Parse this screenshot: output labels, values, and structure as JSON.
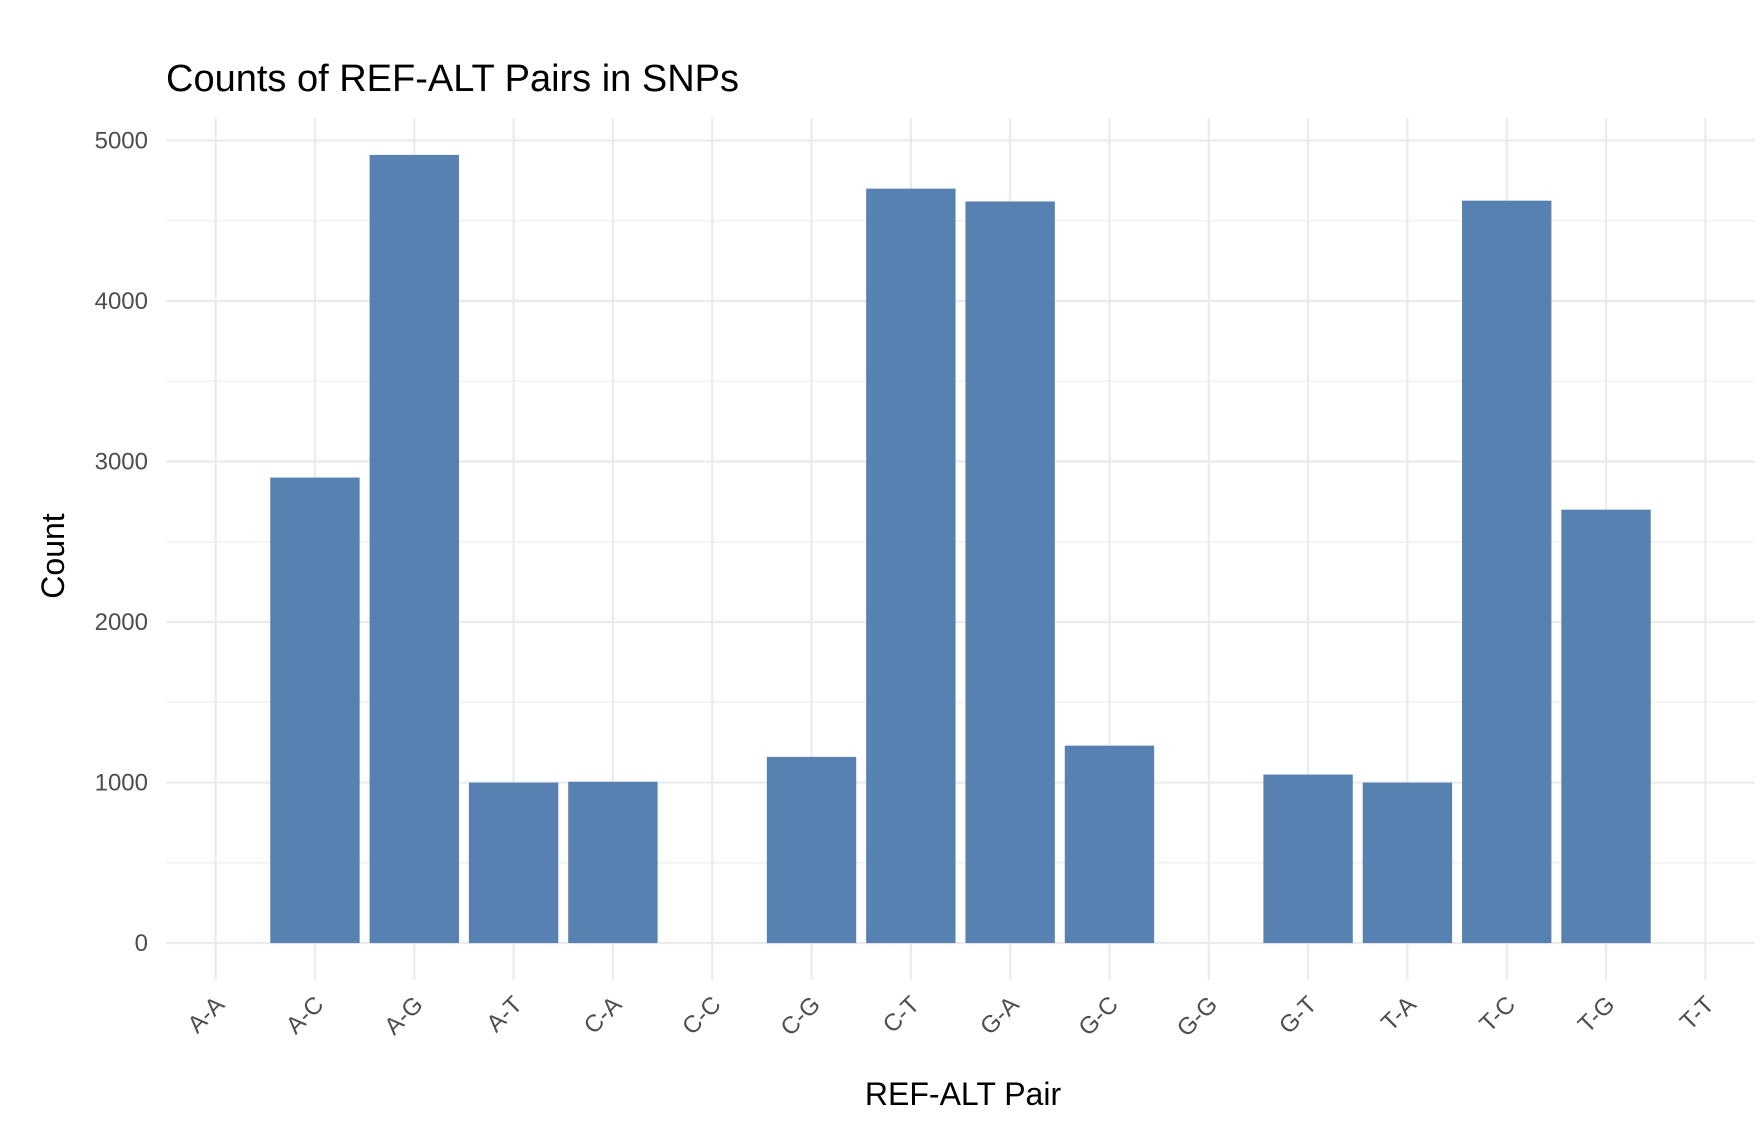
{
  "chart_data": {
    "type": "bar",
    "title": "Counts of REF-ALT Pairs in SNPs",
    "xlabel": "REF-ALT Pair",
    "ylabel": "Count",
    "categories": [
      "A-A",
      "A-C",
      "A-G",
      "A-T",
      "C-A",
      "C-C",
      "C-G",
      "C-T",
      "G-A",
      "G-C",
      "G-G",
      "G-T",
      "T-A",
      "T-C",
      "T-G",
      "T-T"
    ],
    "values": [
      0,
      2900,
      4910,
      1000,
      1005,
      0,
      1160,
      4700,
      4620,
      1230,
      0,
      1050,
      1000,
      4625,
      2700,
      0
    ],
    "ylim": [
      -230,
      5140
    ],
    "yticks": [
      0,
      1000,
      2000,
      3000,
      4000,
      5000
    ],
    "bar_color": "#5681b1",
    "grid": true,
    "legend": "none"
  }
}
